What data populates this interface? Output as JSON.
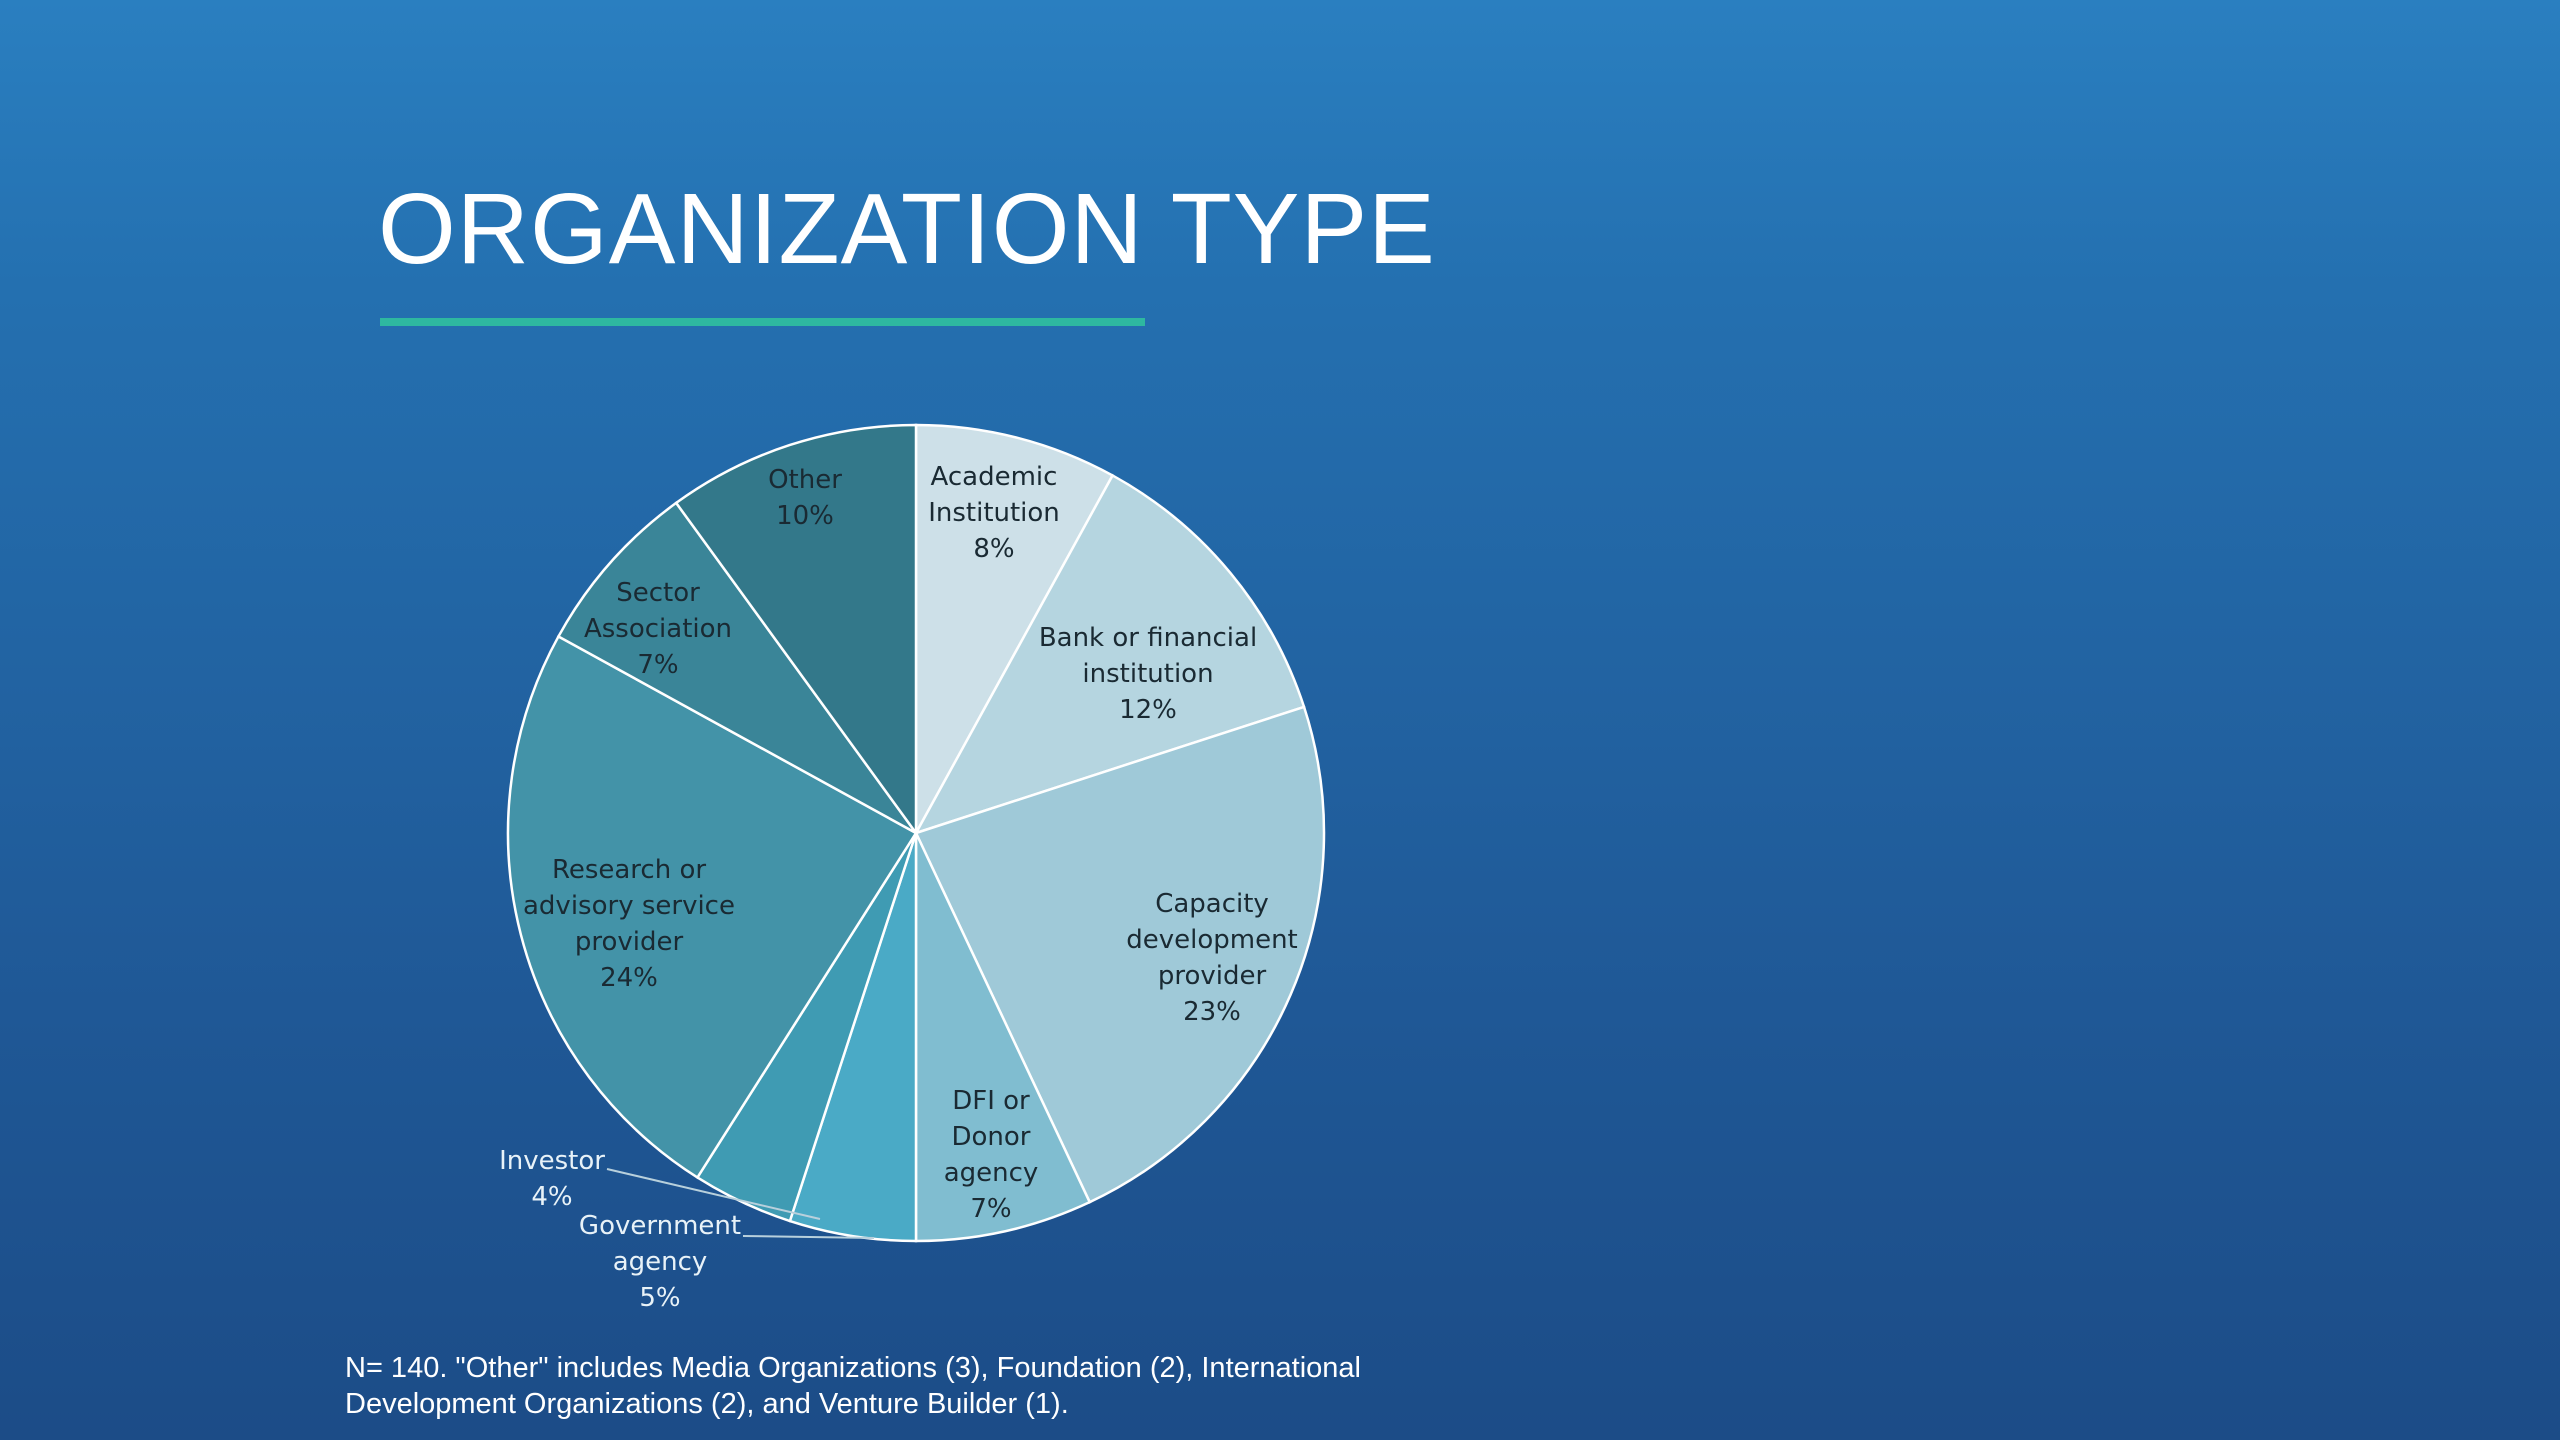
{
  "chart_data": {
    "type": "pie",
    "title": "ORGANIZATION TYPE",
    "categories": [
      "Academic Institution",
      "Bank or financial institution",
      "Capacity development provider",
      "DFI or Donor agency",
      "Government agency",
      "Investor",
      "Research or advisory service provider",
      "Sector Association",
      "Other"
    ],
    "values": [
      8,
      12,
      23,
      7,
      5,
      4,
      24,
      7,
      10
    ],
    "value_labels": [
      "8%",
      "12%",
      "23%",
      "7%",
      "5%",
      "4%",
      "24%",
      "7%",
      "10%"
    ],
    "colors": [
      "#cde0e8",
      "#b5d5e0",
      "#9fc9d8",
      "#80bdd0",
      "#4aaac6",
      "#3f9bb3",
      "#4393a8",
      "#3a8598",
      "#33788a"
    ],
    "footnote": "N= 140. \"Other\" includes Media Organizations (3), Foundation (2), International Development Organizations (2), and Venture Builder (1)."
  }
}
